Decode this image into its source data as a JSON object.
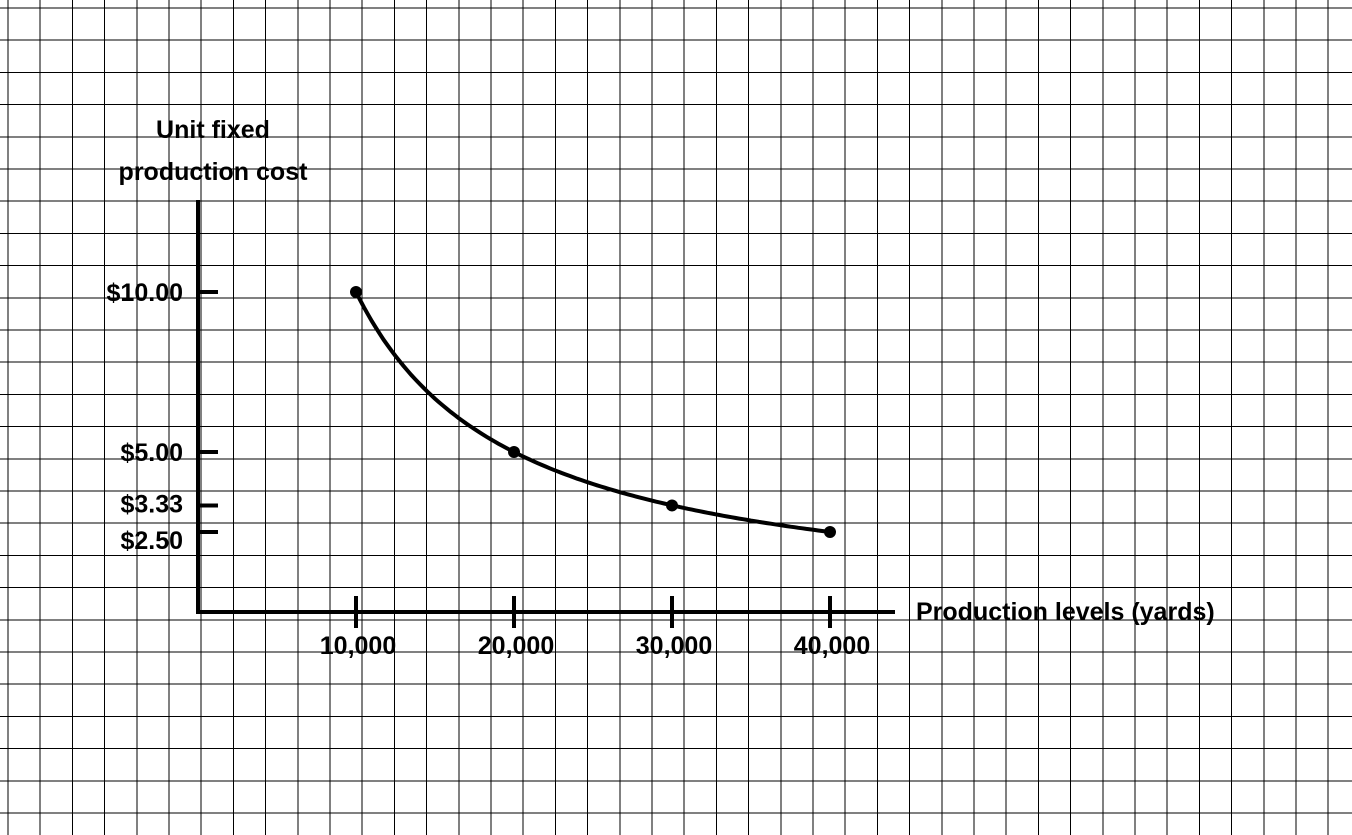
{
  "chart_data": {
    "type": "line",
    "title": "",
    "xlabel": "Production levels (yards)",
    "ylabel_lines": [
      "Unit fixed",
      "production cost"
    ],
    "x_tick_labels": [
      "10,000",
      "20,000",
      "30,000",
      "40,000"
    ],
    "y_tick_labels": [
      "$10.00",
      "$5.00",
      "$3.33",
      "$2.50"
    ],
    "x_ticks": [
      10000,
      20000,
      30000,
      40000
    ],
    "y_ticks": [
      10.0,
      5.0,
      3.33,
      2.5
    ],
    "xlim": [
      0,
      42500
    ],
    "ylim": [
      0,
      15
    ],
    "series": [
      {
        "x": [
          10000,
          20000,
          30000,
          40000
        ],
        "values": [
          10.0,
          5.0,
          3.33,
          2.5
        ]
      }
    ],
    "grid": true,
    "legend": "none",
    "colors": {
      "line": "#000000",
      "grid": "#000000",
      "background": "#ffffff"
    }
  }
}
